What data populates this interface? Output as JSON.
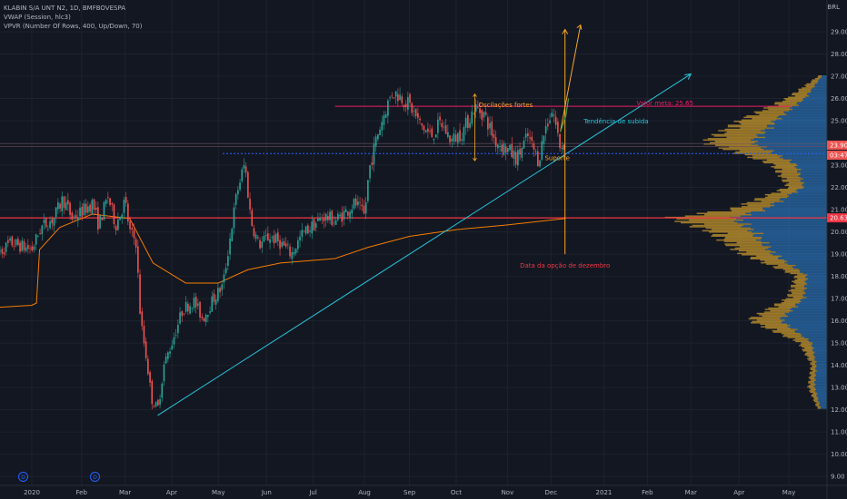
{
  "header": {
    "symbol": "KLABIN S/A UNT N2, 1D, BMFBOVESPA",
    "vwap": "VWAP (Session, hlc3)",
    "vpvr": "VPVR (Number Of Rows, 400, Up/Down, 70)",
    "currency": "BRL"
  },
  "markers": [
    "D",
    "D"
  ],
  "colors": {
    "up": "#26a69a",
    "down": "#ef5350",
    "vwap": "#f57c00",
    "trend": "#26c6da",
    "target": "#e91e63",
    "support": "#2962ff",
    "arrow": "#f9a825",
    "resistance": "#f23645"
  },
  "chart_data": {
    "type": "candlestick",
    "y_ticks": [
      "9.00",
      "10.00",
      "11.00",
      "12.00",
      "13.00",
      "14.00",
      "15.00",
      "16.00",
      "17.00",
      "18.00",
      "19.00",
      "20.00",
      "21.00",
      "22.00",
      "23.00",
      "24.00",
      "25.00",
      "26.00",
      "27.00",
      "28.00",
      "29.00"
    ],
    "ylim": [
      8.6,
      30.1
    ],
    "x_ticks": [
      {
        "label": "2020",
        "date": "2020-01-02"
      },
      {
        "label": "Feb",
        "date": "2020-02-03"
      },
      {
        "label": "Mar",
        "date": "2020-03-02"
      },
      {
        "label": "Apr",
        "date": "2020-04-01"
      },
      {
        "label": "May",
        "date": "2020-05-01"
      },
      {
        "label": "Jun",
        "date": "2020-06-01"
      },
      {
        "label": "Jul",
        "date": "2020-07-01"
      },
      {
        "label": "Aug",
        "date": "2020-08-03"
      },
      {
        "label": "Sep",
        "date": "2020-09-01"
      },
      {
        "label": "Oct",
        "date": "2020-10-01"
      },
      {
        "label": "Nov",
        "date": "2020-11-03"
      },
      {
        "label": "Dec",
        "date": "2020-12-01"
      },
      {
        "label": "2021",
        "date": "2021-01-04"
      },
      {
        "label": "Feb",
        "date": "2021-02-01"
      },
      {
        "label": "Mar",
        "date": "2021-03-01"
      },
      {
        "label": "Apr",
        "date": "2021-04-01"
      },
      {
        "label": "May",
        "date": "2021-05-03"
      }
    ],
    "price_path": [
      [
        "2019-12-10",
        19.0
      ],
      [
        "2019-12-20",
        19.5
      ],
      [
        "2020-01-02",
        19.2
      ],
      [
        "2020-01-08",
        20.2
      ],
      [
        "2020-01-16",
        20.6
      ],
      [
        "2020-01-22",
        21.5
      ],
      [
        "2020-01-28",
        20.6
      ],
      [
        "2020-02-03",
        20.9
      ],
      [
        "2020-02-10",
        21.3
      ],
      [
        "2020-02-14",
        20.3
      ],
      [
        "2020-02-20",
        21.6
      ],
      [
        "2020-02-25",
        20.3
      ],
      [
        "2020-03-02",
        21.4
      ],
      [
        "2020-03-05",
        20.0
      ],
      [
        "2020-03-09",
        19.6
      ],
      [
        "2020-03-12",
        16.0
      ],
      [
        "2020-03-16",
        14.2
      ],
      [
        "2020-03-19",
        12.5
      ],
      [
        "2020-03-23",
        12.0
      ],
      [
        "2020-03-27",
        14.0
      ],
      [
        "2020-04-01",
        15.0
      ],
      [
        "2020-04-08",
        16.5
      ],
      [
        "2020-04-15",
        16.9
      ],
      [
        "2020-04-21",
        16.1
      ],
      [
        "2020-04-28",
        17.0
      ],
      [
        "2020-05-04",
        17.6
      ],
      [
        "2020-05-08",
        19.5
      ],
      [
        "2020-05-13",
        21.8
      ],
      [
        "2020-05-18",
        23.1
      ],
      [
        "2020-05-22",
        20.5
      ],
      [
        "2020-05-27",
        19.4
      ],
      [
        "2020-06-03",
        19.8
      ],
      [
        "2020-06-10",
        19.5
      ],
      [
        "2020-06-17",
        19.0
      ],
      [
        "2020-06-24",
        19.9
      ],
      [
        "2020-07-01",
        20.3
      ],
      [
        "2020-07-08",
        20.7
      ],
      [
        "2020-07-15",
        20.5
      ],
      [
        "2020-07-22",
        20.9
      ],
      [
        "2020-07-28",
        21.3
      ],
      [
        "2020-08-03",
        20.7
      ],
      [
        "2020-08-06",
        22.8
      ],
      [
        "2020-08-11",
        24.3
      ],
      [
        "2020-08-17",
        25.6
      ],
      [
        "2020-08-21",
        26.3
      ],
      [
        "2020-08-26",
        26.1
      ],
      [
        "2020-09-01",
        25.7
      ],
      [
        "2020-09-08",
        24.8
      ],
      [
        "2020-09-15",
        24.3
      ],
      [
        "2020-09-21",
        24.9
      ],
      [
        "2020-09-28",
        24.1
      ],
      [
        "2020-10-05",
        24.5
      ],
      [
        "2020-10-13",
        25.6
      ],
      [
        "2020-10-19",
        25.3
      ],
      [
        "2020-10-26",
        24.1
      ],
      [
        "2020-11-03",
        23.7
      ],
      [
        "2020-11-09",
        23.3
      ],
      [
        "2020-11-16",
        24.3
      ],
      [
        "2020-11-23",
        23.2
      ],
      [
        "2020-11-27",
        24.6
      ],
      [
        "2020-12-02",
        25.5
      ],
      [
        "2020-12-07",
        23.8
      ],
      [
        "2020-12-10",
        24.0
      ]
    ],
    "vwap": [
      [
        "2019-12-10",
        16.6
      ],
      [
        "2020-01-02",
        16.7
      ],
      [
        "2020-01-05",
        16.8
      ],
      [
        "2020-01-07",
        19.2
      ],
      [
        "2020-01-20",
        20.2
      ],
      [
        "2020-02-10",
        20.8
      ],
      [
        "2020-03-05",
        20.6
      ],
      [
        "2020-03-20",
        18.6
      ],
      [
        "2020-04-10",
        17.7
      ],
      [
        "2020-05-01",
        17.7
      ],
      [
        "2020-05-20",
        18.3
      ],
      [
        "2020-06-10",
        18.6
      ],
      [
        "2020-07-15",
        18.8
      ],
      [
        "2020-08-05",
        19.3
      ],
      [
        "2020-09-01",
        19.8
      ],
      [
        "2020-10-01",
        20.1
      ],
      [
        "2020-11-01",
        20.3
      ],
      [
        "2020-12-10",
        20.6
      ]
    ],
    "volume_profile": [
      [
        12.0,
        0.06,
        0.04
      ],
      [
        13.0,
        0.12,
        0.08
      ],
      [
        14.0,
        0.1,
        0.07
      ],
      [
        15.0,
        0.18,
        0.1
      ],
      [
        16.0,
        0.5,
        0.3
      ],
      [
        17.0,
        0.25,
        0.15
      ],
      [
        18.0,
        0.2,
        0.13
      ],
      [
        19.0,
        0.55,
        0.35
      ],
      [
        20.0,
        0.75,
        0.48
      ],
      [
        20.6,
        1.0,
        0.6
      ],
      [
        21.0,
        0.6,
        0.4
      ],
      [
        22.0,
        0.25,
        0.15
      ],
      [
        23.0,
        0.35,
        0.2
      ],
      [
        24.0,
        0.78,
        0.48
      ],
      [
        25.0,
        0.55,
        0.33
      ],
      [
        26.0,
        0.25,
        0.14
      ],
      [
        27.0,
        0.05,
        0.03
      ]
    ],
    "lines": {
      "target": 25.65,
      "support": 23.52,
      "resistance": 20.63,
      "trend_from": [
        "2020-03-23",
        11.75
      ],
      "trend_to": [
        "2021-03-01",
        27.1
      ]
    },
    "price_labels": [
      {
        "text": "23.90",
        "value": 23.9,
        "color": "#ef5350"
      },
      {
        "text": "03:47",
        "value": 23.45,
        "color": "#ef5350"
      },
      {
        "text": "20.63",
        "value": 20.63,
        "color": "#f23645"
      }
    ],
    "annotations": {
      "osc": "Oscilações fortes",
      "support": "Suporte",
      "target": "Valor meta: 25.65",
      "trend": "Tendência de subida",
      "dec": "Data da opção de dezembro"
    }
  }
}
